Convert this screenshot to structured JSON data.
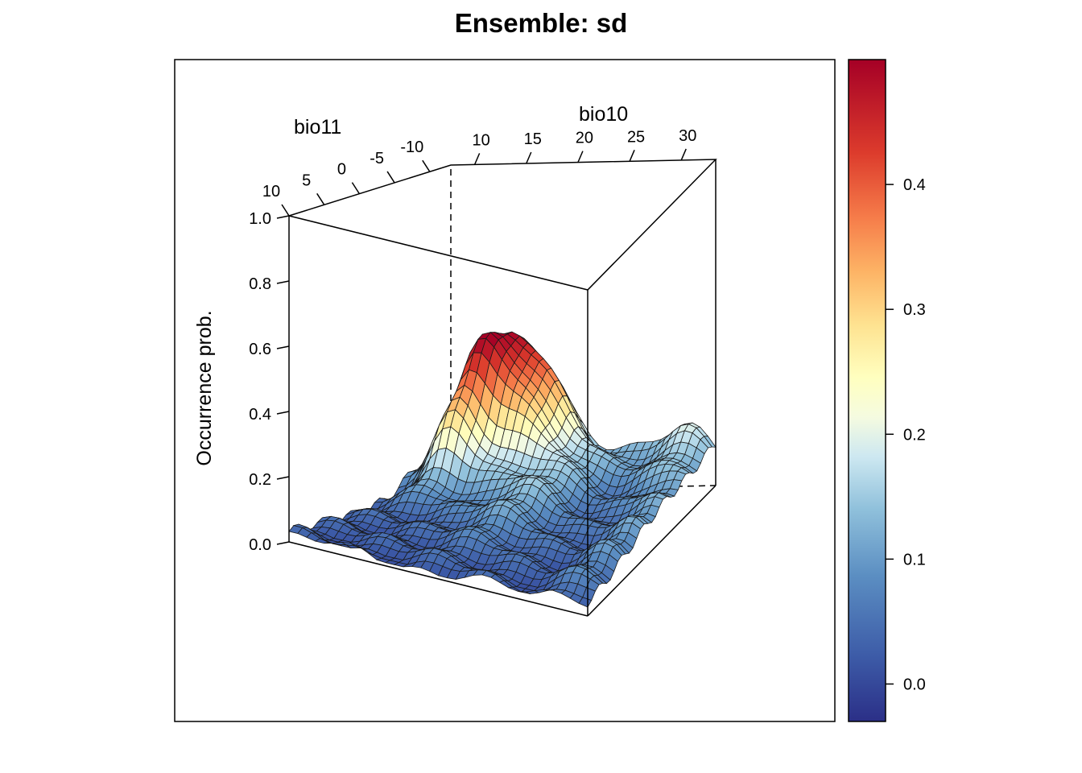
{
  "chart_data": {
    "type": "surface3d",
    "title": "Ensemble: sd",
    "x_axis": {
      "label": "bio11",
      "ticks": [
        "10",
        "5",
        "0",
        "-5",
        "-10"
      ]
    },
    "y_axis": {
      "label": "bio10",
      "ticks": [
        "10",
        "15",
        "20",
        "25",
        "30"
      ]
    },
    "z_axis": {
      "label": "Occurrence prob.",
      "ticks": [
        "0.0",
        "0.2",
        "0.4",
        "0.6",
        "0.8",
        "1.0"
      ],
      "range": [
        0,
        1
      ]
    },
    "colorbar": {
      "range": [
        -0.03,
        0.5
      ],
      "ticks": [
        "0.0",
        "0.1",
        "0.2",
        "0.3",
        "0.4"
      ],
      "palette": "RdYlBu (reversed)",
      "low_color": "#2b2f87",
      "mid_color": "#ffffbf",
      "high_color": "#a50026"
    },
    "grid": false
  }
}
